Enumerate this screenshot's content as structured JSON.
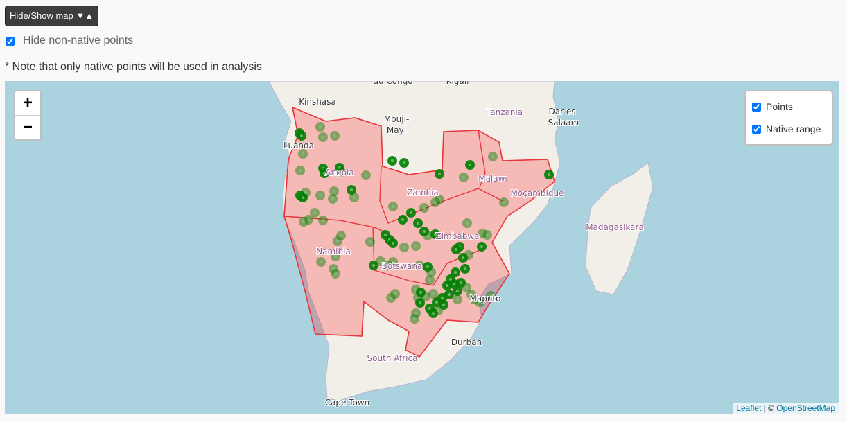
{
  "button": "Hide/Show map ▼▲",
  "native_filter": {
    "label": "Hide non-native points",
    "checked": true
  },
  "note": "* Note that only native points will be used in analysis",
  "map": {
    "zoom_in": "+",
    "zoom_out": "−",
    "labels": [
      "du Congo",
      "Kigali",
      "Kinshasa",
      "Mbuji-",
      "Mayi",
      "Tanzania",
      "Dar es",
      "Salaam",
      "Luanda",
      "Angola",
      "Zambia",
      "Malawi",
      "Moçambique",
      "Zimbabwe",
      "Namibia",
      "Botswana",
      "Madagasikara",
      "Maputo",
      "Durban",
      "South Africa",
      "Cape Town"
    ],
    "layers": [
      {
        "label": "Points",
        "checked": true
      },
      {
        "label": "Native range",
        "checked": true
      }
    ],
    "attribution": {
      "leaflet": "Leaflet",
      "separator": "| ©",
      "osm": "OpenStreetMap"
    }
  }
}
